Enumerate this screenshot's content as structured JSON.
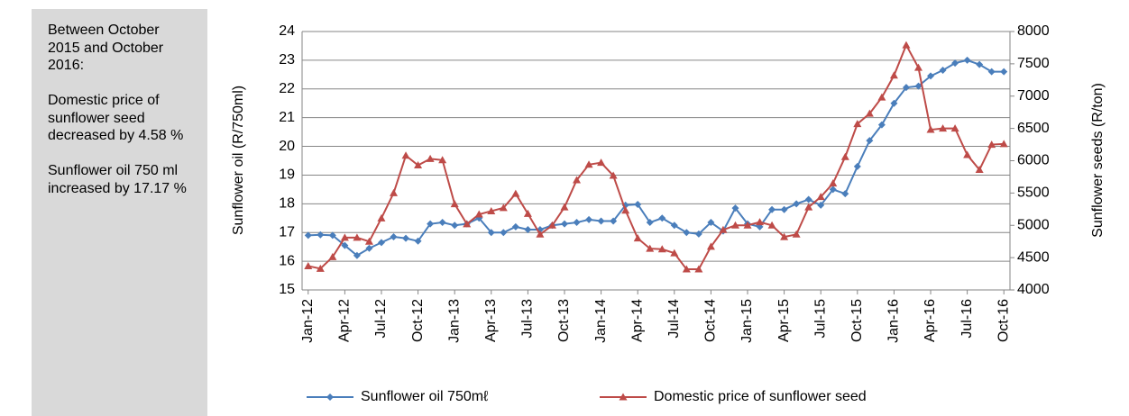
{
  "panel": [
    "Between October 2015 and October 2016:",
    "Domestic price of sunflower seed decreased by 4.58 %",
    "Sunflower oil 750 ml increased by 17.17 %"
  ],
  "chart_data": {
    "type": "line",
    "y_label": "Sunflower oil (R/750ml)",
    "y2_label": "Sunflower seeds (R/ton)",
    "categories": [
      "Jan-12",
      null,
      null,
      "Apr-12",
      null,
      null,
      "Jul-12",
      null,
      null,
      "Oct-12",
      null,
      null,
      "Jan-13",
      null,
      null,
      "Apr-13",
      null,
      null,
      "Jul-13",
      null,
      null,
      "Oct-13",
      null,
      null,
      "Jan-14",
      null,
      null,
      "Apr-14",
      null,
      null,
      "Jul-14",
      null,
      null,
      "Oct-14",
      null,
      null,
      "Jan-15",
      null,
      null,
      "Apr-15",
      null,
      null,
      "Jul-15",
      null,
      null,
      "Oct-15",
      null,
      null,
      "Jan-16",
      null,
      null,
      "Apr-16",
      null,
      null,
      "Jul-16",
      null,
      null,
      "Oct-16"
    ],
    "series": [
      {
        "name": "Sunflower oil 750mℓ",
        "color": "#4a7ebb",
        "marker": "diamond",
        "values": [
          16.9,
          16.92,
          16.9,
          16.55,
          16.2,
          16.45,
          16.65,
          16.85,
          16.8,
          16.7,
          17.3,
          17.35,
          17.25,
          17.3,
          17.5,
          17.0,
          17.0,
          17.2,
          17.1,
          17.1,
          17.25,
          17.3,
          17.35,
          17.45,
          17.4,
          17.4,
          17.95,
          17.98,
          17.35,
          17.5,
          17.25,
          17.0,
          16.95,
          17.35,
          17.05,
          17.85,
          17.3,
          17.2,
          17.8,
          17.8,
          18.0,
          18.15,
          17.95,
          18.5,
          18.35,
          19.3,
          20.2,
          20.75,
          21.5,
          22.05,
          22.1,
          22.45,
          22.65,
          22.9,
          23.0,
          22.85,
          22.6,
          22.6
        ]
      },
      {
        "name": "Domestic price of sunflower seed",
        "color": "#be4b48",
        "marker": "triangle",
        "axis": "y2",
        "values": [
          4370,
          4330,
          4510,
          4810,
          4810,
          4750,
          5110,
          5500,
          6080,
          5930,
          6030,
          6010,
          5330,
          5020,
          5170,
          5220,
          5270,
          5490,
          5180,
          4860,
          5000,
          5280,
          5700,
          5940,
          5970,
          5770,
          5230,
          4800,
          4640,
          4630,
          4570,
          4320,
          4320,
          4670,
          4930,
          5000,
          5000,
          5050,
          5000,
          4820,
          4860,
          5280,
          5440,
          5650,
          6060,
          6570,
          6730,
          6980,
          7320,
          7790,
          7440,
          6480,
          6500,
          6500,
          6090,
          5860,
          6250,
          6260
        ]
      }
    ],
    "ylim": [
      15,
      24
    ],
    "yticks": [
      15,
      16,
      17,
      18,
      19,
      20,
      21,
      22,
      23,
      24
    ],
    "y2lim": [
      4000,
      8000
    ],
    "y2ticks": [
      4000,
      4500,
      5000,
      5500,
      6000,
      6500,
      7000,
      7500,
      8000
    ],
    "grid": true,
    "legend": "bottom"
  }
}
